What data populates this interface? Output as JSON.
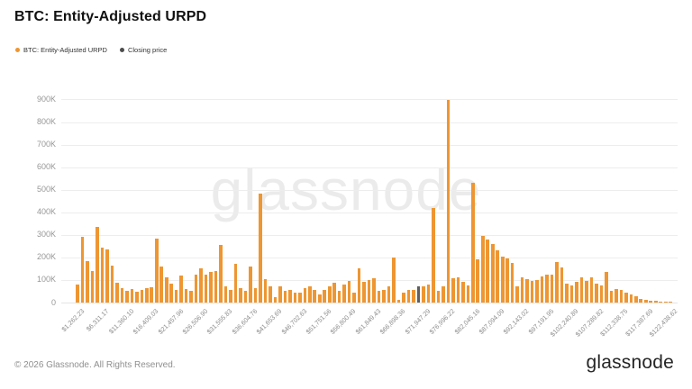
{
  "header": {
    "title": "BTC: Entity-Adjusted URPD"
  },
  "legend": {
    "items": [
      {
        "label": "BTC: Entity-Adjusted URPD",
        "color": "#ee9632"
      },
      {
        "label": "Closing price",
        "color": "#4d4d4d"
      }
    ]
  },
  "watermark": "glassnode",
  "footer": {
    "copyright": "© 2026 Glassnode. All Rights Reserved.",
    "brand": "glassnode"
  },
  "chart_data": {
    "type": "bar",
    "title": "BTC: Entity-Adjusted URPD",
    "xlabel": "",
    "ylabel": "",
    "ylim": [
      0,
      900000
    ],
    "grid": true,
    "legend_position": "top-left",
    "bar_color": "#ee9632",
    "closing_price_color": "#5f5f5f",
    "closing_price_index": 69,
    "values_unit": "BTC (thousands), per ~$1,009.79 price bucket",
    "ytick_labels": [
      "0",
      "100K",
      "200K",
      "300K",
      "400K",
      "500K",
      "600K",
      "700K",
      "800K",
      "900K"
    ],
    "xtick_every": 5,
    "xtick_labels": [
      "$1,262.23",
      "$6,311.17",
      "$11,360.10",
      "$16,409.03",
      "$21,457.96",
      "$26,506.90",
      "$31,555.83",
      "$36,604.76",
      "$41,653.69",
      "$46,702.63",
      "$51,751.56",
      "$56,800.49",
      "$61,849.43",
      "$66,898.36",
      "$71,947.29",
      "$76,996.22",
      "$82,045.16",
      "$87,094.09",
      "$92,143.02",
      "$97,191.95",
      "$102,240.89",
      "$107,289.82",
      "$112,338.75",
      "$117,387.69",
      "$122,438.62"
    ],
    "values_k": [
      80,
      290,
      185,
      140,
      335,
      245,
      235,
      162,
      87,
      62,
      52,
      58,
      48,
      54,
      64,
      68,
      285,
      160,
      110,
      85,
      55,
      120,
      60,
      50,
      122,
      150,
      125,
      135,
      138,
      255,
      73,
      57,
      170,
      64,
      50,
      160,
      64,
      482,
      104,
      73,
      25,
      70,
      50,
      57,
      44,
      44,
      64,
      73,
      54,
      37,
      57,
      73,
      86,
      50,
      80,
      97,
      44,
      153,
      90,
      100,
      108,
      50,
      57,
      73,
      198,
      10,
      45,
      57,
      57,
      70,
      70,
      81,
      420,
      50,
      73,
      896,
      108,
      113,
      90,
      75,
      530,
      190,
      295,
      280,
      260,
      230,
      205,
      195,
      175,
      70,
      110,
      105,
      95,
      100,
      115,
      125,
      125,
      180,
      155,
      85,
      75,
      90,
      110,
      95,
      110,
      85,
      75,
      135,
      50,
      60,
      55,
      44,
      37,
      28,
      17,
      13,
      8,
      6,
      4,
      3,
      2
    ]
  }
}
